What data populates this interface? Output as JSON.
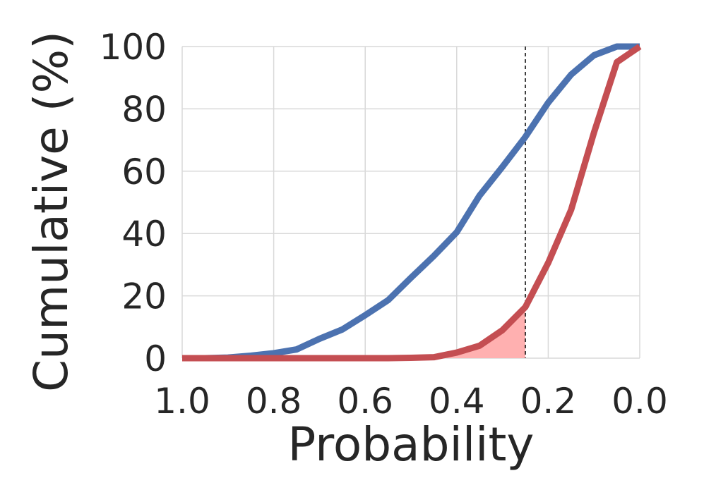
{
  "chart_data": {
    "type": "line",
    "title": "",
    "xlabel": "Probability",
    "ylabel": "Cumulative (%)",
    "xlim": [
      1.0,
      0.0
    ],
    "ylim": [
      0,
      100
    ],
    "x_inverted": true,
    "grid": true,
    "legend": "none",
    "x_ticks": [
      "1.0",
      "0.8",
      "0.6",
      "0.4",
      "0.2",
      "0.0"
    ],
    "y_ticks": [
      "0",
      "20",
      "40",
      "60",
      "80",
      "100"
    ],
    "threshold": 0.25,
    "series": [
      {
        "color": "#4c72b0",
        "x": [
          1.0,
          0.95,
          0.9,
          0.85,
          0.8,
          0.75,
          0.7,
          0.65,
          0.6,
          0.55,
          0.5,
          0.45,
          0.4,
          0.35,
          0.3,
          0.25,
          0.2,
          0.15,
          0.1,
          0.05,
          0.0
        ],
        "y": [
          0,
          0,
          0.2,
          0.8,
          1.6,
          2.8,
          6.2,
          9.2,
          13.8,
          18.6,
          25.8,
          32.8,
          40.4,
          52.2,
          61.4,
          71.0,
          82.0,
          91.0,
          97.2,
          100,
          100
        ]
      },
      {
        "color": "#c44e52",
        "x": [
          1.0,
          0.95,
          0.9,
          0.85,
          0.8,
          0.75,
          0.7,
          0.65,
          0.6,
          0.55,
          0.5,
          0.45,
          0.4,
          0.35,
          0.3,
          0.25,
          0.2,
          0.15,
          0.1,
          0.05,
          0.0
        ],
        "y": [
          0,
          0,
          0,
          0,
          0,
          0,
          0,
          0,
          0,
          0,
          0.1,
          0.3,
          1.8,
          4.0,
          9.0,
          16.4,
          30.6,
          47.6,
          72.4,
          95.0,
          100
        ]
      }
    ],
    "shaded_region": {
      "series_index": 1,
      "x_from": 1.0,
      "x_to": 0.25,
      "color": "#ffb0b0"
    }
  }
}
